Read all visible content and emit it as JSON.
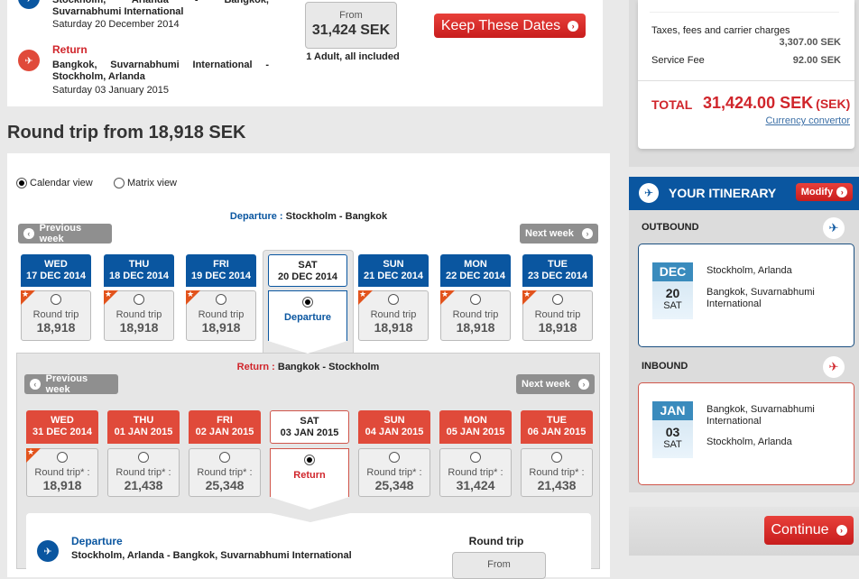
{
  "summary": {
    "outbound_route": "Stockholm, Arlanda - Bangkok, Suvarnabhumi International",
    "outbound_date": "Saturday 20 December 2014",
    "return_label": "Return",
    "return_route": "Bangkok, Suvarnabhumi International - Stockholm, Arlanda",
    "return_date": "Saturday 03 January 2015",
    "from_label": "From",
    "price": "31,424 SEK",
    "passengers": "1 Adult, all included",
    "keep_button": "Keep These Dates"
  },
  "heading": "Round trip from 18,918 SEK",
  "views": {
    "calendar": "Calendar view",
    "matrix": "Matrix view",
    "selected": "calendar"
  },
  "departure": {
    "label": "Departure :",
    "route": "Stockholm - Bangkok",
    "prev": "Previous week",
    "next": "Next week",
    "days": [
      {
        "day": "WED",
        "date": "17 DEC 2014",
        "type": "Round trip",
        "price": "18,918",
        "star": true
      },
      {
        "day": "THU",
        "date": "18 DEC 2014",
        "type": "Round trip",
        "price": "18,918",
        "star": true
      },
      {
        "day": "FRI",
        "date": "19 DEC 2014",
        "type": "Round trip",
        "price": "18,918",
        "star": true
      },
      {
        "day": "SAT",
        "date": "20 DEC 2014",
        "selected": true,
        "sel_label": "Departure"
      },
      {
        "day": "SUN",
        "date": "21 DEC 2014",
        "type": "Round trip",
        "price": "18,918",
        "star": true
      },
      {
        "day": "MON",
        "date": "22 DEC 2014",
        "type": "Round trip",
        "price": "18,918",
        "star": true
      },
      {
        "day": "TUE",
        "date": "23 DEC 2014",
        "type": "Round trip",
        "price": "18,918",
        "star": true
      }
    ]
  },
  "return": {
    "label": "Return :",
    "route": "Bangkok - Stockholm",
    "prev": "Previous week",
    "next": "Next week",
    "days": [
      {
        "day": "WED",
        "date": "31 DEC 2014",
        "type": "Round trip* :",
        "price": "18,918",
        "star": true
      },
      {
        "day": "THU",
        "date": "01 JAN 2015",
        "type": "Round trip* :",
        "price": "21,438"
      },
      {
        "day": "FRI",
        "date": "02 JAN 2015",
        "type": "Round trip* :",
        "price": "25,348"
      },
      {
        "day": "SAT",
        "date": "03 JAN 2015",
        "selected": true,
        "sel_label": "Return"
      },
      {
        "day": "SUN",
        "date": "04 JAN 2015",
        "type": "Round trip* :",
        "price": "25,348"
      },
      {
        "day": "MON",
        "date": "05 JAN 2015",
        "type": "Round trip* :",
        "price": "31,424"
      },
      {
        "day": "TUE",
        "date": "06 JAN 2015",
        "type": "Round trip* :",
        "price": "21,438"
      }
    ]
  },
  "detail": {
    "title": "Departure",
    "route": "Stockholm, Arlanda - Bangkok, Suvarnabhumi International",
    "trip": "Round trip",
    "from": "From"
  },
  "price_box": {
    "taxes_label": "Taxes, fees and carrier charges",
    "taxes": "3,307.00 SEK",
    "fee_label": "Service Fee",
    "fee": "92.00 SEK",
    "total_label": "TOTAL",
    "total": "31,424.00 SEK",
    "total_cur": "(SEK)",
    "currency_link": "Currency convertor"
  },
  "itinerary": {
    "title": "YOUR ITINERARY",
    "modify": "Modify",
    "outbound": {
      "label": "OUTBOUND",
      "month": "DEC",
      "day": "20",
      "dow": "SAT",
      "from": "Stockholm, Arlanda",
      "to": "Bangkok, Suvarnabhumi International"
    },
    "inbound": {
      "label": "INBOUND",
      "month": "JAN",
      "day": "03",
      "dow": "SAT",
      "from": "Bangkok, Suvarnabhumi International",
      "to": "Stockholm, Arlanda"
    },
    "continue": "Continue"
  },
  "colors": {
    "blue": "#0a56a0",
    "red": "#e04a3a",
    "price_red": "#d0252b"
  }
}
